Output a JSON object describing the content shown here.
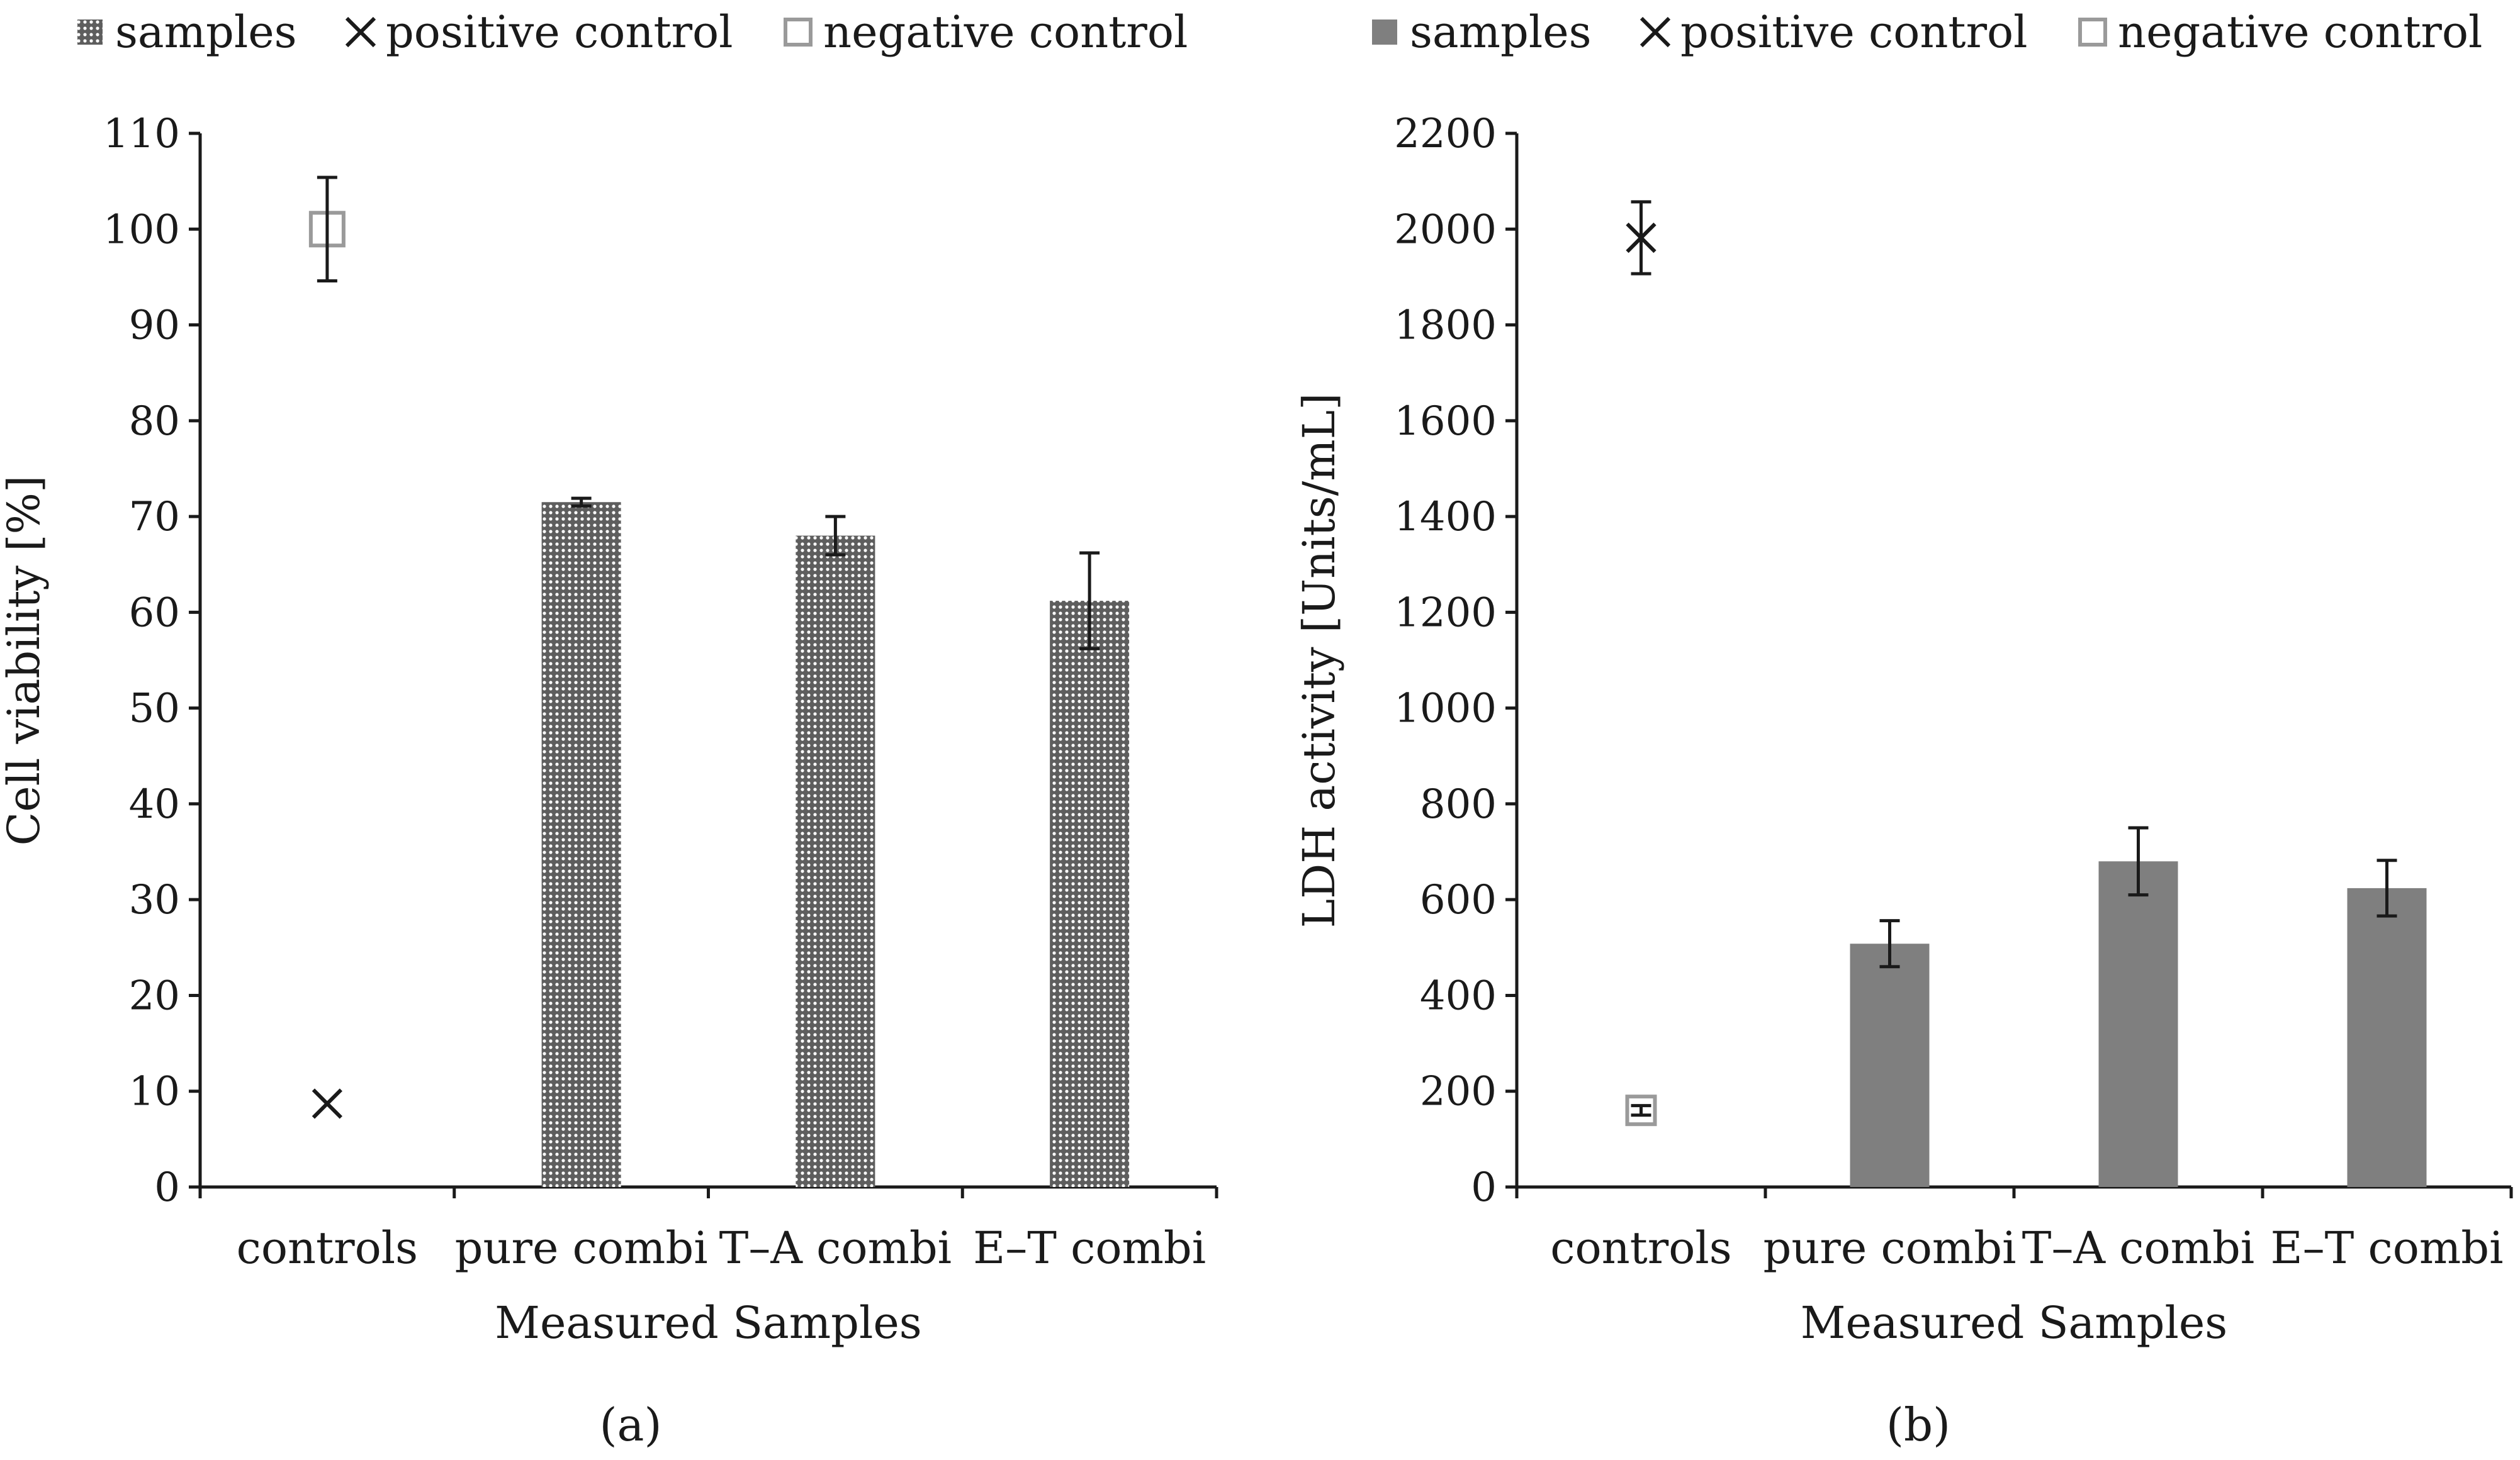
{
  "figure": {
    "panel_a_label": "(a)",
    "panel_b_label": "(b)"
  },
  "chart_data": [
    {
      "id": "a",
      "type": "bar",
      "panel_label": "(a)",
      "title": "",
      "xlabel": "Measured Samples",
      "ylabel": "Cell  viability [%]",
      "ylim": [
        0,
        110
      ],
      "yticks": [
        0,
        10,
        20,
        30,
        40,
        50,
        60,
        70,
        80,
        90,
        100,
        110
      ],
      "grid": false,
      "legend_position": "top",
      "categories": [
        "controls",
        "pure combi",
        "T–A combi",
        "E–T combi"
      ],
      "series": [
        {
          "name": "samples",
          "kind": "bar",
          "fill": "dotted-gray",
          "values": [
            null,
            71.5,
            68.0,
            61.2
          ],
          "errors": [
            null,
            0.4,
            2.0,
            5.0
          ]
        },
        {
          "name": "positive control",
          "kind": "marker-x",
          "values": [
            8.7,
            null,
            null,
            null
          ],
          "errors": [
            0,
            null,
            null,
            null
          ]
        },
        {
          "name": "negative control",
          "kind": "marker-square",
          "values": [
            100,
            null,
            null,
            null
          ],
          "errors": [
            5.4,
            null,
            null,
            null
          ]
        }
      ],
      "legend": [
        "samples",
        "positive control",
        "negative control"
      ]
    },
    {
      "id": "b",
      "type": "bar",
      "panel_label": "(b)",
      "title": "",
      "xlabel": "Measured Samples",
      "ylabel": "LDH activity [Units/mL]",
      "ylim": [
        0,
        2200
      ],
      "yticks": [
        0,
        200,
        400,
        600,
        800,
        1000,
        1200,
        1400,
        1600,
        1800,
        2000,
        2200
      ],
      "grid": false,
      "legend_position": "top",
      "categories": [
        "controls",
        "pure combi",
        "T–A combi",
        "E–T combi"
      ],
      "series": [
        {
          "name": "samples",
          "kind": "bar",
          "fill": "solid-gray",
          "values": [
            null,
            508,
            680,
            624
          ],
          "errors": [
            null,
            48,
            70,
            58
          ]
        },
        {
          "name": "positive control",
          "kind": "marker-x",
          "values": [
            1982,
            null,
            null,
            null
          ],
          "errors": [
            75,
            null,
            null,
            null
          ]
        },
        {
          "name": "negative control",
          "kind": "marker-square",
          "values": [
            160,
            null,
            null,
            null
          ],
          "errors": [
            10,
            null,
            null,
            null
          ]
        }
      ],
      "legend": [
        "samples",
        "positive control",
        "negative control"
      ]
    }
  ],
  "colors": {
    "axis": "#1a1a1a",
    "bar_solid": "#7f7f7f",
    "bar_dotted_base": "#5e5e5e",
    "square_marker": "#9a9a9a",
    "error_bar": "#1a1a1a"
  }
}
